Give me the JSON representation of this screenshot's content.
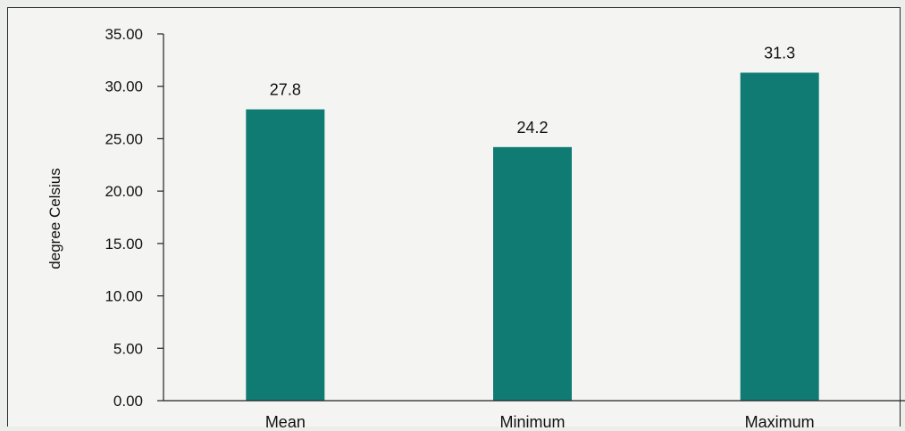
{
  "chart_data": {
    "type": "bar",
    "title": "",
    "xlabel": "",
    "ylabel": "degree Celsius",
    "categories": [
      "Mean",
      "Minimum",
      "Maximum"
    ],
    "values": [
      27.8,
      24.2,
      31.3
    ],
    "data_labels": [
      "27.8",
      "24.2",
      "31.3"
    ],
    "ylim": [
      0,
      35
    ],
    "yticks": [
      "0.00",
      "5.00",
      "10.00",
      "15.00",
      "20.00",
      "25.00",
      "30.00",
      "35.00"
    ],
    "ytick_values": [
      0,
      5,
      10,
      15,
      20,
      25,
      30,
      35
    ],
    "grid": false,
    "legend": "none",
    "bar_color": "#0f7b73",
    "axis_color": "#222222"
  }
}
